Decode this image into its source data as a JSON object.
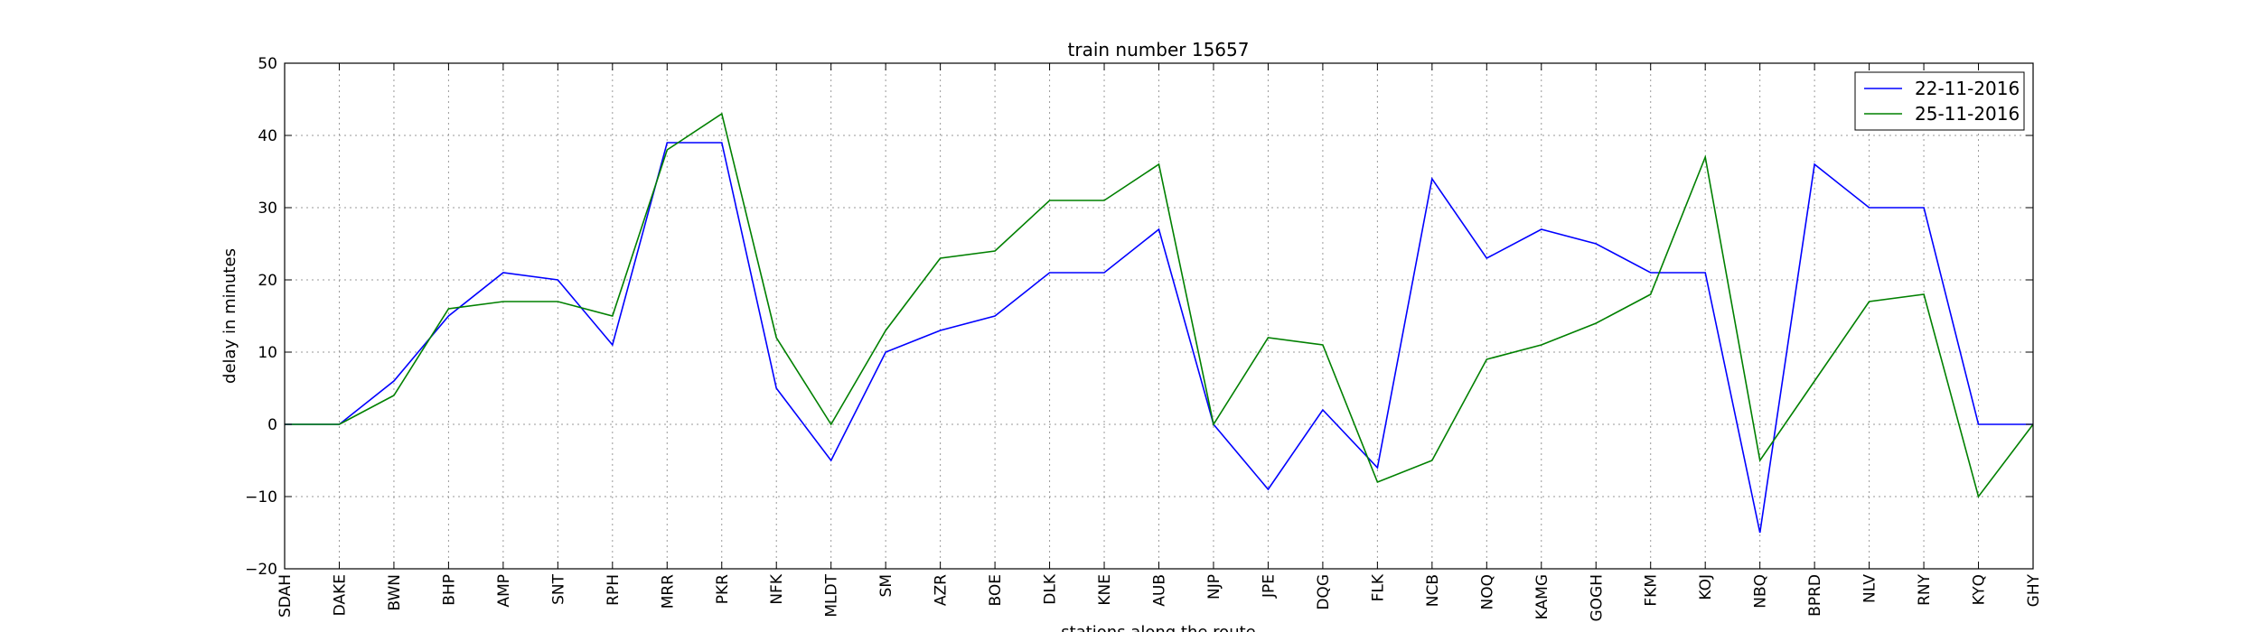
{
  "chart_data": {
    "type": "line",
    "title": "train number 15657",
    "xlabel": "stations along the route",
    "ylabel": "delay in minutes",
    "ylim": [
      -20,
      50
    ],
    "yticks": [
      -20,
      -10,
      0,
      10,
      20,
      30,
      40,
      50
    ],
    "ytick_labels": [
      "−20",
      "−10",
      "0",
      "10",
      "20",
      "30",
      "40",
      "50"
    ],
    "grid": true,
    "legend_position": "top-right",
    "categories": [
      "SDAH",
      "DAKE",
      "BWN",
      "BHP",
      "AMP",
      "SNT",
      "RPH",
      "MRR",
      "PKR",
      "NFK",
      "MLDT",
      "SM",
      "AZR",
      "BOE",
      "DLK",
      "KNE",
      "AUB",
      "NJP",
      "JPE",
      "DQG",
      "FLK",
      "NCB",
      "NOQ",
      "KAMG",
      "GOGH",
      "FKM",
      "KOJ",
      "NBQ",
      "BPRD",
      "NLV",
      "RNY",
      "KYQ",
      "GHY"
    ],
    "series": [
      {
        "name": "22-11-2016",
        "color": "#0000ff",
        "values": [
          0,
          0,
          6,
          15,
          21,
          20,
          11,
          39,
          39,
          5,
          -5,
          10,
          13,
          15,
          21,
          21,
          27,
          0,
          -9,
          2,
          -6,
          34,
          23,
          27,
          25,
          21,
          21,
          -15,
          36,
          30,
          30,
          0,
          0
        ]
      },
      {
        "name": "25-11-2016",
        "color": "#008000",
        "values": [
          0,
          0,
          4,
          16,
          17,
          17,
          15,
          38,
          43,
          12,
          0,
          13,
          23,
          24,
          31,
          31,
          36,
          0,
          12,
          11,
          -8,
          -5,
          9,
          11,
          14,
          18,
          37,
          -5,
          6,
          17,
          18,
          -10,
          0
        ]
      }
    ]
  }
}
